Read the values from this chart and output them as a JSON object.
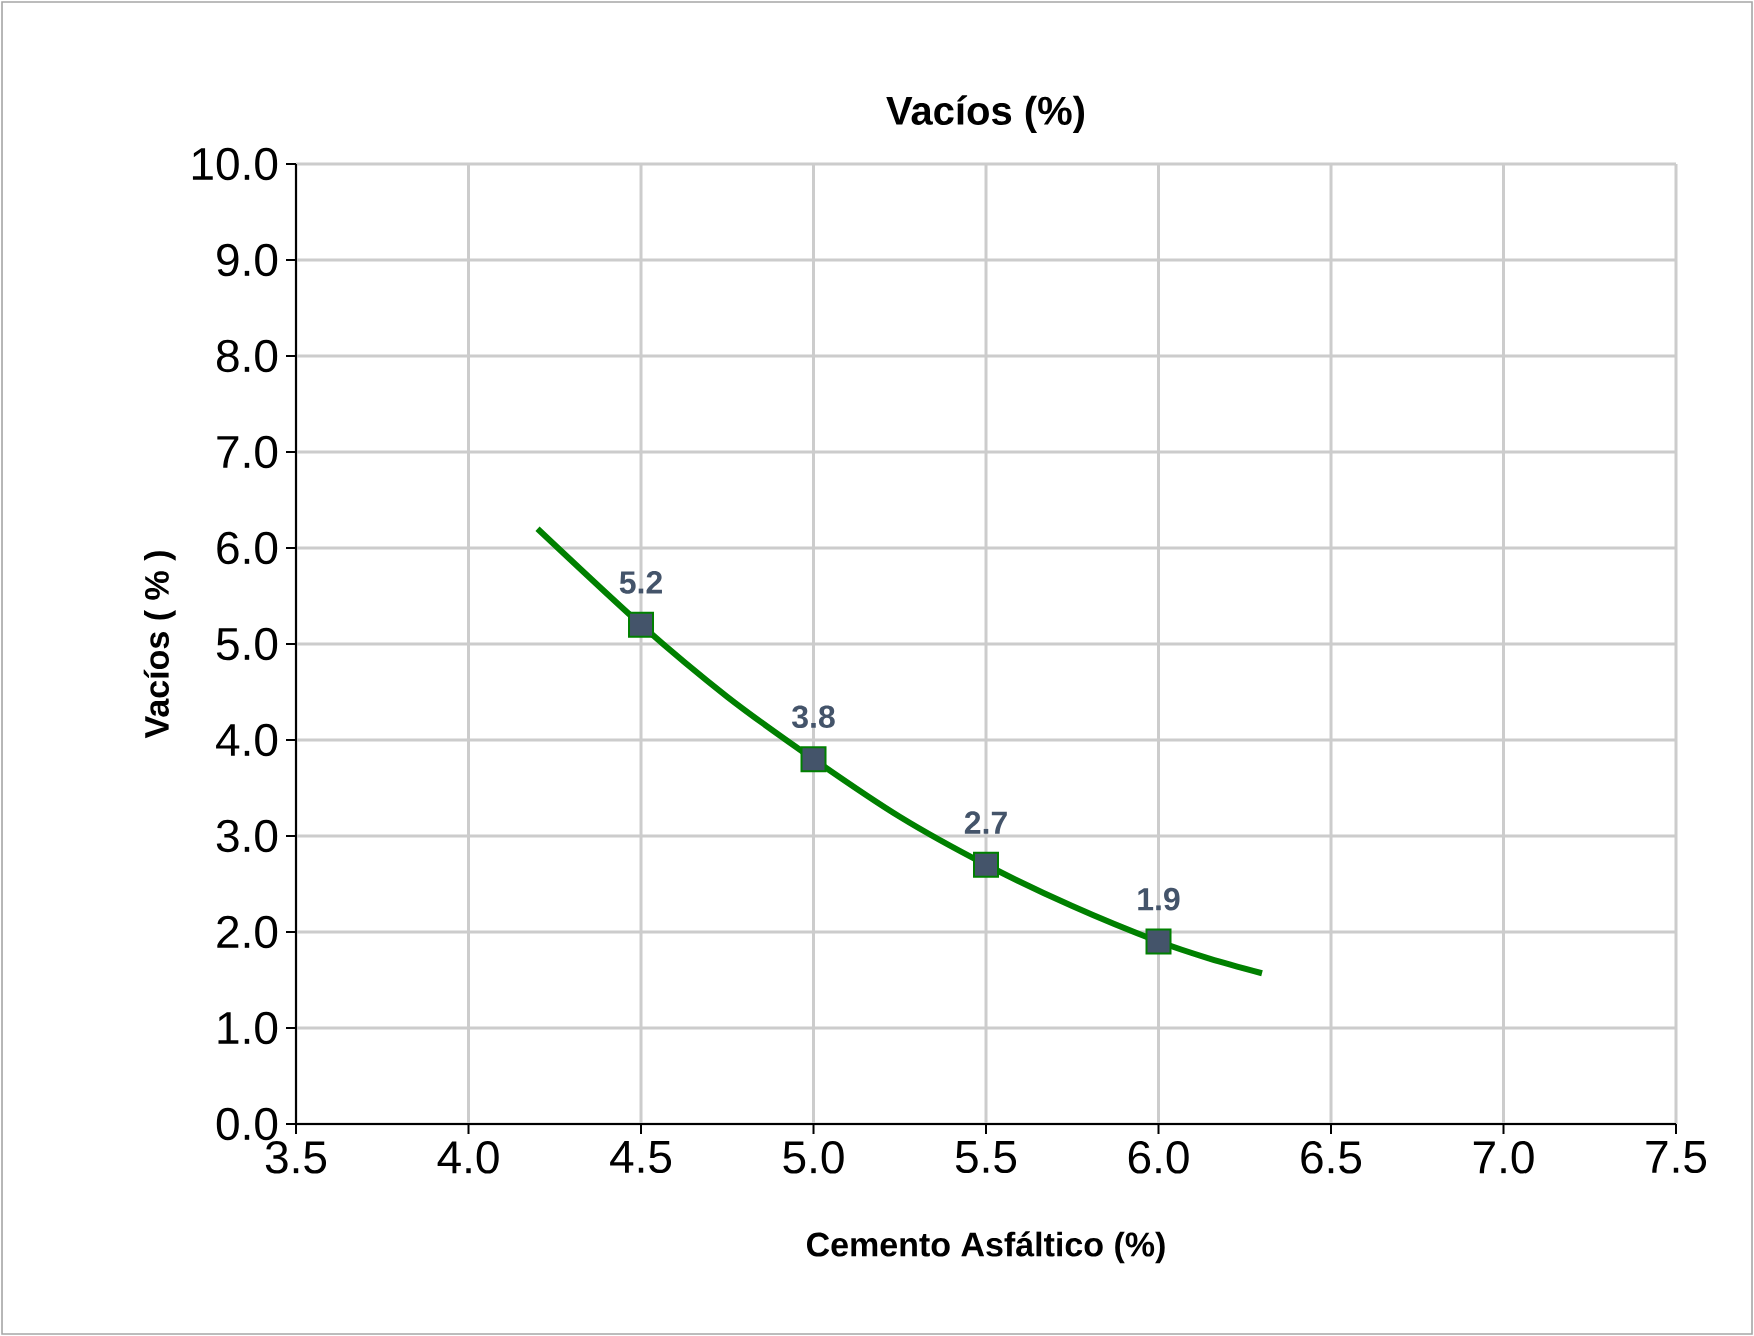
{
  "chart_data": {
    "type": "line",
    "title": "Vacíos (%)",
    "xlabel": "Cemento Asfáltico (%)",
    "ylabel": "Vacíos ( % )",
    "series": [
      {
        "color": "#008000",
        "x": [
          4.2,
          4.5,
          4.75,
          5.0,
          5.25,
          5.5,
          5.75,
          6.0,
          6.15,
          6.3
        ],
        "values": [
          6.2,
          5.2,
          4.45,
          3.8,
          3.2,
          2.7,
          2.27,
          1.9,
          1.72,
          1.57
        ]
      },
      {
        "type": "scatter",
        "color": "#44546a",
        "marker": "square",
        "x": [
          4.5,
          5.0,
          5.5,
          6.0
        ],
        "values": [
          5.2,
          3.8,
          2.7,
          1.9
        ],
        "value_labels": [
          "5.2",
          "3.8",
          "2.7",
          "1.9"
        ]
      }
    ],
    "xlim": [
      3.5,
      7.5
    ],
    "ylim": [
      0,
      10
    ],
    "xticks": [
      3.5,
      {
        "value": 4,
        "label": "4.0"
      },
      4.5,
      {
        "value": 5,
        "label": "5.0"
      },
      5.5,
      {
        "value": 6,
        "label": "6.0"
      },
      6.5,
      {
        "value": 7,
        "label": "7.0"
      },
      7.5
    ],
    "yticks": [
      {
        "value": 0,
        "label": "0.0"
      },
      {
        "value": 1,
        "label": "1.0"
      },
      {
        "value": 2,
        "label": "2.0"
      },
      {
        "value": 3,
        "label": "3.0"
      },
      {
        "value": 4,
        "label": "4.0"
      },
      {
        "value": 5,
        "label": "5.0"
      },
      {
        "value": 6,
        "label": "6.0"
      },
      {
        "value": 7,
        "label": "7.0"
      },
      {
        "value": 8,
        "label": "8.0"
      },
      {
        "value": 9,
        "label": "9.0"
      },
      {
        "value": 10,
        "label": "10.0"
      }
    ],
    "grid": true
  }
}
